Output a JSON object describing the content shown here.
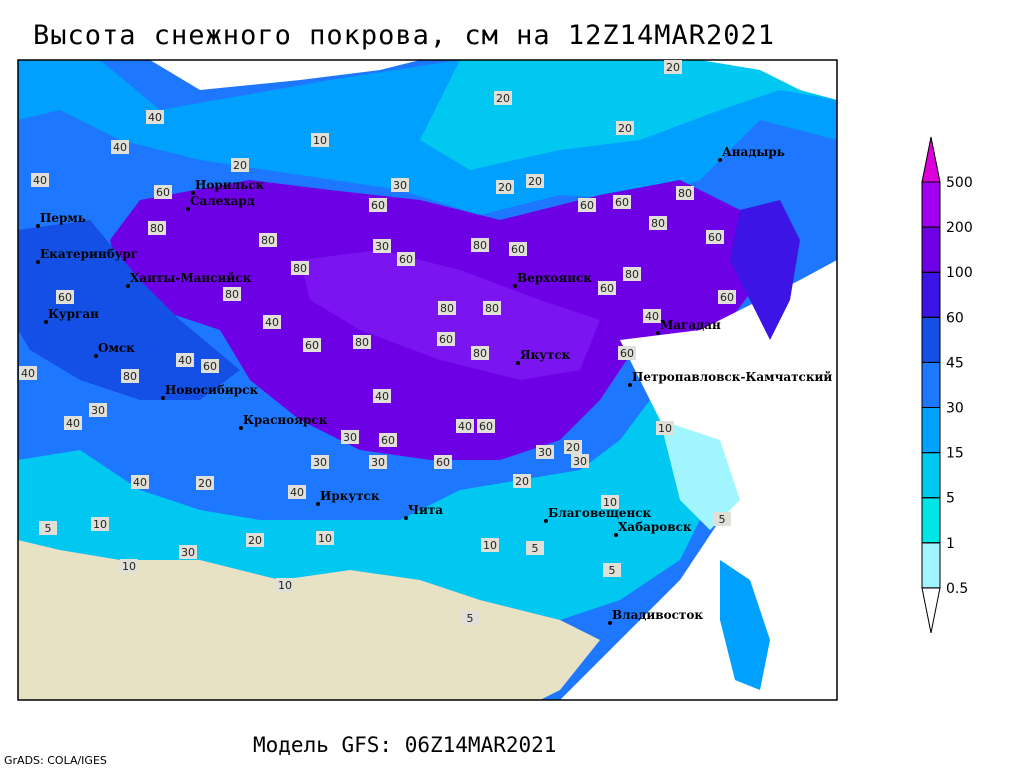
{
  "title": "Высота снежного покрова, см на 12Z14MAR2021",
  "model": "Модель GFS: 06Z14MAR2021",
  "credit": "GrADS: COLA/IGES",
  "legend": {
    "levels": [
      0.5,
      1,
      5,
      15,
      30,
      45,
      60,
      100,
      200,
      500
    ],
    "colors": [
      "#ffffff",
      "#a0f5ff",
      "#00e6e6",
      "#00c8f0",
      "#00a0ff",
      "#1e78ff",
      "#1450e6",
      "#3c14e6",
      "#6e00e6",
      "#a000f0",
      "#dc00dc"
    ]
  },
  "cities": [
    "Пермь",
    "Екатеринбург",
    "Ханты-Мансийск",
    "Курган",
    "Омск",
    "Новосибирск",
    "Красноярск",
    "Иркутск",
    "Чита",
    "Якутск",
    "Верхоянск",
    "Магадан",
    "Анадырь",
    "Петропавловск-Камчатский",
    "Благовещенск",
    "Хабаровск",
    "Владивосток",
    "Норильск",
    "Салехард"
  ],
  "contour_labels": [
    20,
    20,
    20,
    10,
    20,
    40,
    40,
    40,
    60,
    80,
    80,
    80,
    80,
    40,
    60,
    80,
    40,
    30,
    60,
    30,
    30,
    40,
    20,
    40,
    40,
    30,
    80,
    40,
    60,
    60,
    40,
    5,
    10,
    30,
    10,
    20,
    10,
    10,
    10,
    5,
    5,
    10,
    10,
    5,
    5,
    20,
    60,
    60,
    40,
    30,
    20,
    30,
    60,
    40,
    80,
    80,
    80,
    60,
    60,
    30,
    60,
    80,
    60,
    60,
    60,
    80,
    80,
    60,
    60,
    80,
    60,
    20,
    20,
    30
  ]
}
